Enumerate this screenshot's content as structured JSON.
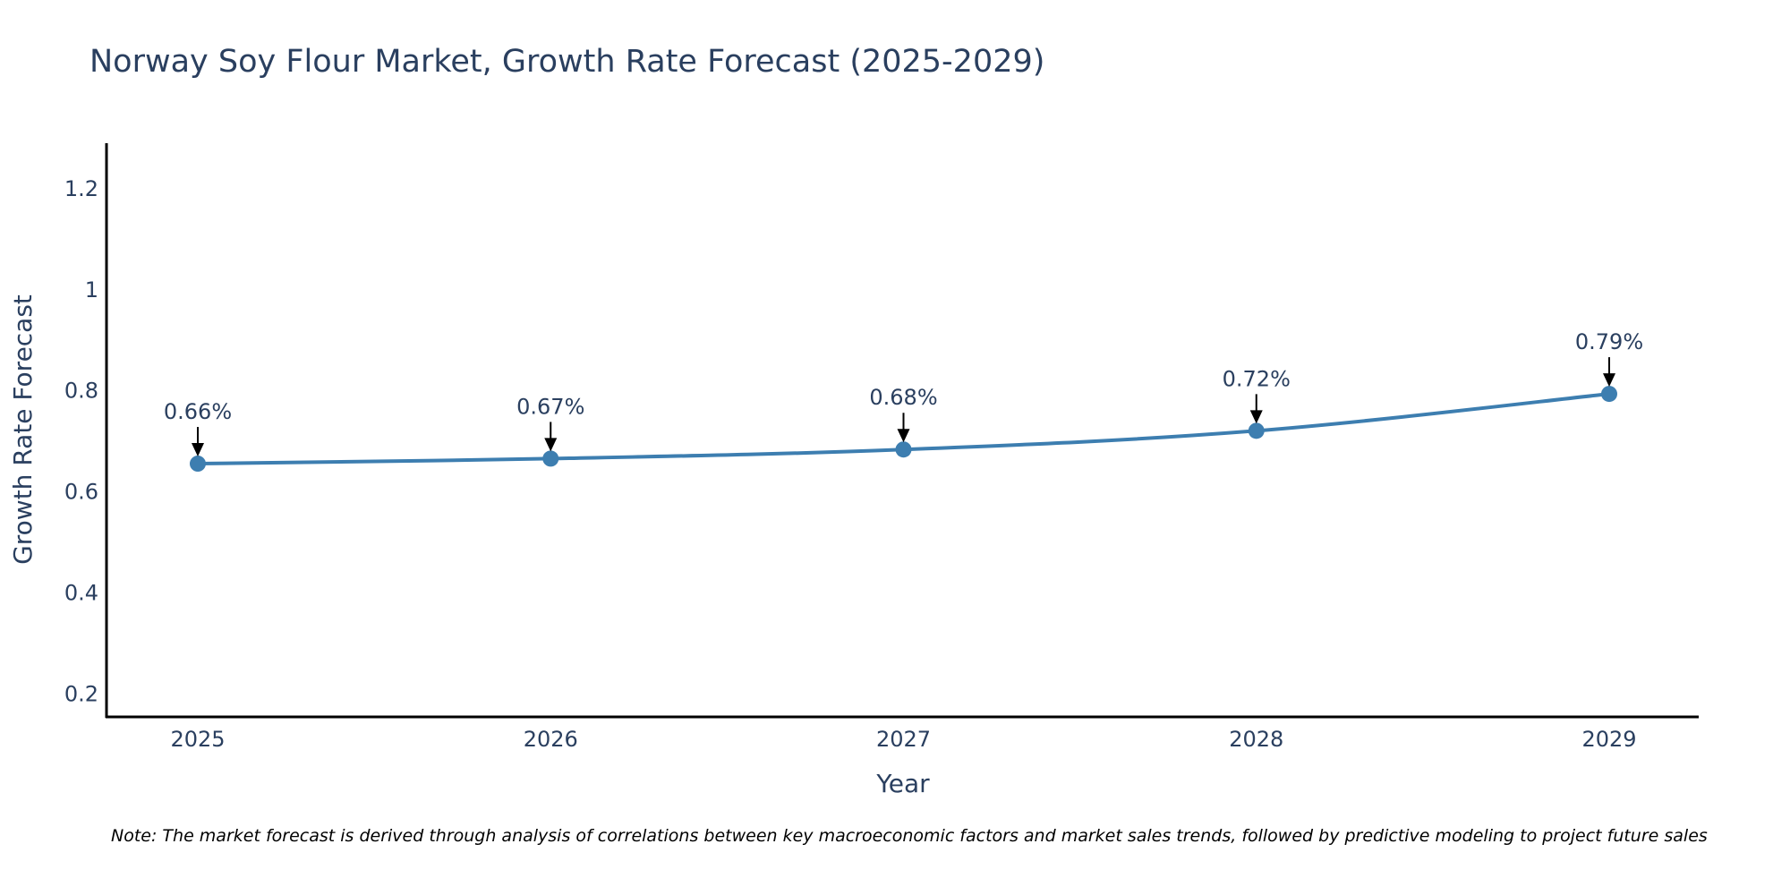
{
  "chart_data": {
    "type": "line",
    "title": "Norway Soy Flour Market, Growth Rate Forecast (2025-2029)",
    "xlabel": "Year",
    "ylabel": "Growth Rate Forecast",
    "categories": [
      "2025",
      "2026",
      "2027",
      "2028",
      "2029"
    ],
    "series": [
      {
        "name": "Growth Rate Forecast",
        "values": [
          0.656,
          0.666,
          0.684,
          0.721,
          0.794
        ],
        "labels": [
          "0.66%",
          "0.67%",
          "0.68%",
          "0.72%",
          "0.79%"
        ]
      }
    ],
    "yticks": [
      0.2,
      0.4,
      0.6,
      0.8,
      1,
      1.2
    ],
    "ytick_labels": [
      "0.2",
      "0.4",
      "0.6",
      "0.8",
      "1",
      "1.2"
    ],
    "ylim": [
      0.155,
      1.29
    ],
    "grid": false,
    "line_color": "#3d7eb0",
    "note": "Note: The market forecast is derived through analysis of correlations between key macroeconomic factors and market sales trends, followed by predictive modeling to project future sales"
  }
}
